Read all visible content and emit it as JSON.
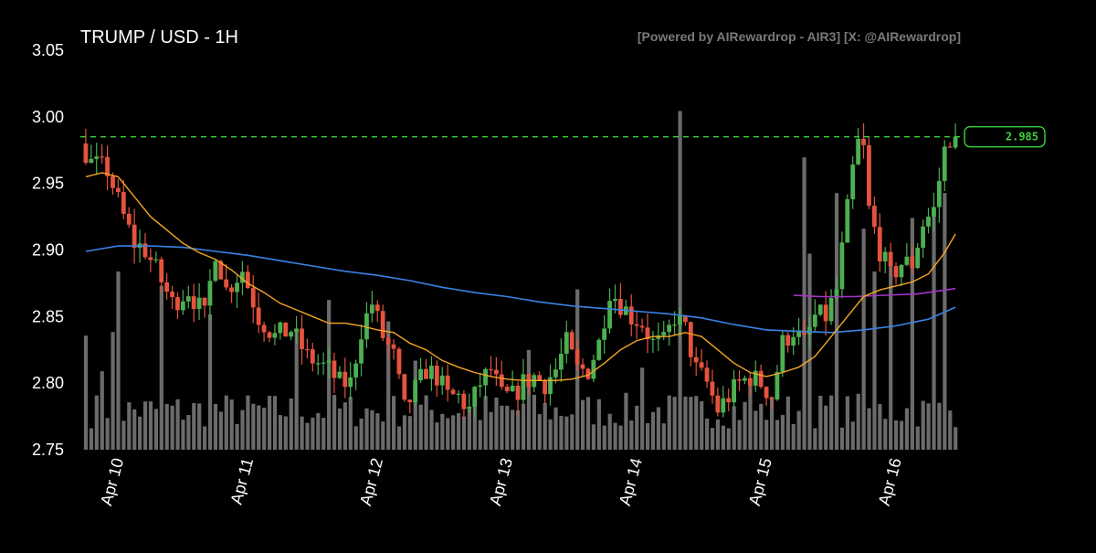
{
  "chart_data": {
    "type": "candlestick",
    "title": "TRUMP / USD - 1H",
    "credit": "[Powered by AIRewardrop - AIR3] [X: @AIRewardrop]",
    "ylim": [
      2.75,
      3.05
    ],
    "yticks": [
      "3.05",
      "3.00",
      "2.95",
      "2.90",
      "2.85",
      "2.80",
      "2.75"
    ],
    "x_ticks": [
      "Apr 10",
      "Apr 11",
      "Apr 12",
      "Apr 13",
      "Apr 14",
      "Apr 15",
      "Apr 16"
    ],
    "x_range_hours": [
      -7,
      156
    ],
    "current_price": 2.985,
    "current_price_label": "2.985",
    "grid": false,
    "colors": {
      "up": "#4caf50",
      "down": "#e5533d",
      "volume": "#6b6b6b",
      "sma_short": "#f5a623",
      "sma_long": "#3b82e6",
      "sma_mid": "#a335c9",
      "price_line": "#3fcf3f"
    },
    "anchors": [
      [
        -6,
        2.98
      ],
      [
        -4,
        2.965
      ],
      [
        -1,
        2.96
      ],
      [
        2,
        2.925
      ],
      [
        4,
        2.905
      ],
      [
        6,
        2.9
      ],
      [
        8,
        2.885
      ],
      [
        11,
        2.86
      ],
      [
        14,
        2.87
      ],
      [
        17,
        2.85
      ],
      [
        19,
        2.9
      ],
      [
        21,
        2.87
      ],
      [
        24,
        2.885
      ],
      [
        27,
        2.85
      ],
      [
        30,
        2.835
      ],
      [
        33,
        2.84
      ],
      [
        36,
        2.82
      ],
      [
        40,
        2.81
      ],
      [
        42,
        2.8
      ],
      [
        44,
        2.8
      ],
      [
        46,
        2.84
      ],
      [
        48,
        2.86
      ],
      [
        50,
        2.835
      ],
      [
        52,
        2.82
      ],
      [
        54,
        2.78
      ],
      [
        56,
        2.795
      ],
      [
        58,
        2.81
      ],
      [
        60,
        2.805
      ],
      [
        62,
        2.79
      ],
      [
        64,
        2.79
      ],
      [
        66,
        2.78
      ],
      [
        68,
        2.8
      ],
      [
        70,
        2.81
      ],
      [
        72,
        2.79
      ],
      [
        74,
        2.79
      ],
      [
        76,
        2.8
      ],
      [
        78,
        2.805
      ],
      [
        80,
        2.8
      ],
      [
        82,
        2.81
      ],
      [
        84,
        2.83
      ],
      [
        86,
        2.81
      ],
      [
        88,
        2.81
      ],
      [
        90,
        2.83
      ],
      [
        92,
        2.87
      ],
      [
        94,
        2.86
      ],
      [
        96,
        2.85
      ],
      [
        98,
        2.845
      ],
      [
        100,
        2.83
      ],
      [
        102,
        2.83
      ],
      [
        104,
        2.85
      ],
      [
        106,
        2.84
      ],
      [
        108,
        2.81
      ],
      [
        110,
        2.8
      ],
      [
        112,
        2.78
      ],
      [
        114,
        2.79
      ],
      [
        116,
        2.8
      ],
      [
        118,
        2.805
      ],
      [
        120,
        2.8
      ],
      [
        122,
        2.79
      ],
      [
        124,
        2.83
      ],
      [
        126,
        2.84
      ],
      [
        128,
        2.83
      ],
      [
        130,
        2.85
      ],
      [
        132,
        2.85
      ],
      [
        134,
        2.87
      ],
      [
        136,
        2.93
      ],
      [
        137,
        2.96
      ],
      [
        138,
        2.98
      ],
      [
        139,
        2.975
      ],
      [
        140,
        2.93
      ],
      [
        142,
        2.9
      ],
      [
        144,
        2.88
      ],
      [
        146,
        2.89
      ],
      [
        148,
        2.89
      ],
      [
        150,
        2.92
      ],
      [
        152,
        2.93
      ],
      [
        154,
        2.975
      ],
      [
        155,
        2.985
      ]
    ],
    "sma_short": [
      [
        -6,
        2.955
      ],
      [
        -3,
        2.958
      ],
      [
        0,
        2.955
      ],
      [
        3,
        2.94
      ],
      [
        6,
        2.925
      ],
      [
        9,
        2.915
      ],
      [
        12,
        2.905
      ],
      [
        15,
        2.898
      ],
      [
        18,
        2.893
      ],
      [
        21,
        2.885
      ],
      [
        24,
        2.875
      ],
      [
        27,
        2.868
      ],
      [
        30,
        2.86
      ],
      [
        33,
        2.855
      ],
      [
        36,
        2.85
      ],
      [
        39,
        2.845
      ],
      [
        42,
        2.845
      ],
      [
        45,
        2.843
      ],
      [
        48,
        2.84
      ],
      [
        51,
        2.838
      ],
      [
        54,
        2.83
      ],
      [
        57,
        2.825
      ],
      [
        60,
        2.817
      ],
      [
        63,
        2.812
      ],
      [
        66,
        2.808
      ],
      [
        69,
        2.805
      ],
      [
        72,
        2.803
      ],
      [
        75,
        2.802
      ],
      [
        78,
        2.802
      ],
      [
        81,
        2.802
      ],
      [
        84,
        2.803
      ],
      [
        87,
        2.806
      ],
      [
        90,
        2.815
      ],
      [
        93,
        2.825
      ],
      [
        96,
        2.832
      ],
      [
        99,
        2.835
      ],
      [
        102,
        2.835
      ],
      [
        105,
        2.838
      ],
      [
        108,
        2.835
      ],
      [
        111,
        2.825
      ],
      [
        114,
        2.815
      ],
      [
        117,
        2.808
      ],
      [
        120,
        2.805
      ],
      [
        123,
        2.808
      ],
      [
        126,
        2.812
      ],
      [
        129,
        2.82
      ],
      [
        132,
        2.835
      ],
      [
        135,
        2.85
      ],
      [
        138,
        2.865
      ],
      [
        141,
        2.87
      ],
      [
        144,
        2.873
      ],
      [
        147,
        2.876
      ],
      [
        150,
        2.882
      ],
      [
        153,
        2.898
      ],
      [
        155,
        2.912
      ]
    ],
    "sma_long": [
      [
        -6,
        2.899
      ],
      [
        0,
        2.903
      ],
      [
        6,
        2.903
      ],
      [
        12,
        2.902
      ],
      [
        18,
        2.899
      ],
      [
        24,
        2.896
      ],
      [
        30,
        2.892
      ],
      [
        36,
        2.888
      ],
      [
        42,
        2.884
      ],
      [
        48,
        2.881
      ],
      [
        54,
        2.877
      ],
      [
        60,
        2.872
      ],
      [
        66,
        2.868
      ],
      [
        72,
        2.865
      ],
      [
        78,
        2.861
      ],
      [
        84,
        2.858
      ],
      [
        90,
        2.856
      ],
      [
        96,
        2.854
      ],
      [
        102,
        2.852
      ],
      [
        108,
        2.849
      ],
      [
        114,
        2.844
      ],
      [
        120,
        2.84
      ],
      [
        126,
        2.839
      ],
      [
        132,
        2.838
      ],
      [
        138,
        2.84
      ],
      [
        144,
        2.843
      ],
      [
        150,
        2.848
      ],
      [
        155,
        2.857
      ]
    ],
    "sma_mid": [
      [
        125,
        2.866
      ],
      [
        130,
        2.865
      ],
      [
        136,
        2.865
      ],
      [
        142,
        2.866
      ],
      [
        148,
        2.867
      ],
      [
        155,
        2.871
      ]
    ],
    "volume_spikes": [
      [
        -6,
        0.32
      ],
      [
        -3,
        0.22
      ],
      [
        -1,
        0.33
      ],
      [
        0,
        0.5
      ],
      [
        8,
        0.46
      ],
      [
        17,
        0.38
      ],
      [
        33,
        0.34
      ],
      [
        39,
        0.42
      ],
      [
        50,
        0.36
      ],
      [
        55,
        0.25
      ],
      [
        76,
        0.28
      ],
      [
        85,
        0.45
      ],
      [
        97,
        0.23
      ],
      [
        104,
        0.95
      ],
      [
        117,
        0.2
      ],
      [
        127,
        0.82
      ],
      [
        128,
        0.55
      ],
      [
        133,
        0.72
      ],
      [
        138,
        0.62
      ],
      [
        140,
        0.5
      ],
      [
        143,
        0.55
      ],
      [
        147,
        0.65
      ],
      [
        151,
        0.68
      ],
      [
        153,
        0.72
      ]
    ]
  }
}
